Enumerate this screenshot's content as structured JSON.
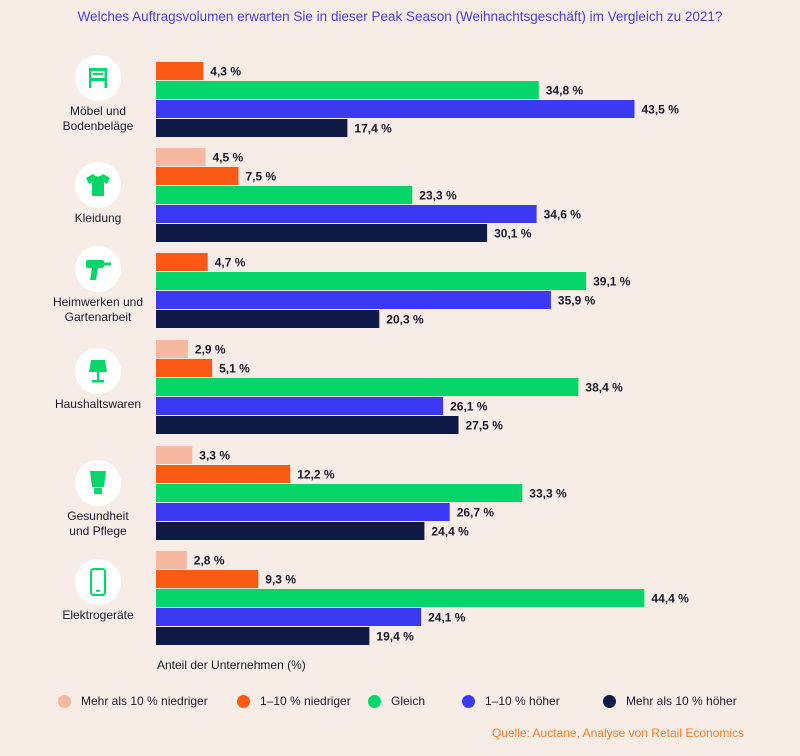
{
  "title": "Welches Auftragsvolumen erwarten Sie in dieser Peak Season (Weihnachtsgeschäft) im Vergleich zu 2021?",
  "source": "Quelle: Auctane, Analyse von Retail Economics",
  "colors": {
    "niedriger_10": "#f4b9a0",
    "niedriger_1_10": "#fa5a14",
    "gleich": "#06d66a",
    "hoeher_1_10": "#3b3af0",
    "hoeher_10": "#0e1a45",
    "icon_bg": "#ffffff",
    "icon_fg": "#06d66a"
  },
  "chart_data": {
    "type": "bar",
    "orientation": "horizontal",
    "xlabel": "Anteil der Unternehmen (%)",
    "xlim": [
      0,
      50
    ],
    "grid": false,
    "legend_position": "bottom",
    "categories": [
      {
        "name": "Möbel und Bodenbeläge",
        "lines": [
          "Möbel und",
          "Bodenbeläge"
        ],
        "icon": "chair-icon"
      },
      {
        "name": "Kleidung",
        "lines": [
          "Kleidung"
        ],
        "icon": "tshirt-icon"
      },
      {
        "name": "Heimwerken und Gartenarbeit",
        "lines": [
          "Heimwerken und",
          "Gartenarbeit"
        ],
        "icon": "drill-icon"
      },
      {
        "name": "Haushaltswaren",
        "lines": [
          "Haushaltswaren"
        ],
        "icon": "lamp-icon"
      },
      {
        "name": "Gesundheit und Pflege",
        "lines": [
          "Gesundheit",
          "und Pflege"
        ],
        "icon": "tube-icon"
      },
      {
        "name": "Elektrogeräte",
        "lines": [
          "Elektrogeräte"
        ],
        "icon": "phone-icon"
      }
    ],
    "series": [
      {
        "name": "Mehr als 10 % niedriger",
        "color": "#f4b9a0",
        "values": [
          null,
          4.5,
          null,
          2.9,
          3.3,
          2.8
        ],
        "labels": [
          "",
          "4,5 %",
          "",
          "2,9 %",
          "3,3 %",
          "2,8 %"
        ]
      },
      {
        "name": "1–10 % niedriger",
        "color": "#fa5a14",
        "values": [
          4.3,
          7.5,
          4.7,
          5.1,
          12.2,
          9.3
        ],
        "labels": [
          "4,3 %",
          "7,5 %",
          "4,7 %",
          "5,1 %",
          "12,2 %",
          "9,3 %"
        ]
      },
      {
        "name": "Gleich",
        "color": "#06d66a",
        "values": [
          34.8,
          23.3,
          39.1,
          38.4,
          33.3,
          44.4
        ],
        "labels": [
          "34,8 %",
          "23,3 %",
          "39,1 %",
          "38,4 %",
          "33,3 %",
          "44,4 %"
        ]
      },
      {
        "name": "1–10 % höher",
        "color": "#3b3af0",
        "values": [
          43.5,
          34.6,
          35.9,
          26.1,
          26.7,
          24.1
        ],
        "labels": [
          "43,5 %",
          "34,6 %",
          "35,9 %",
          "26,1 %",
          "26,7 %",
          "24,1 %"
        ]
      },
      {
        "name": "Mehr als 10 % höher",
        "color": "#0e1a45",
        "values": [
          17.4,
          30.1,
          20.3,
          27.5,
          24.4,
          19.4
        ],
        "labels": [
          "17,4 %",
          "30,1 %",
          "20,3 %",
          "27,5 %",
          "24,4 %",
          "19,4 %"
        ]
      }
    ]
  }
}
